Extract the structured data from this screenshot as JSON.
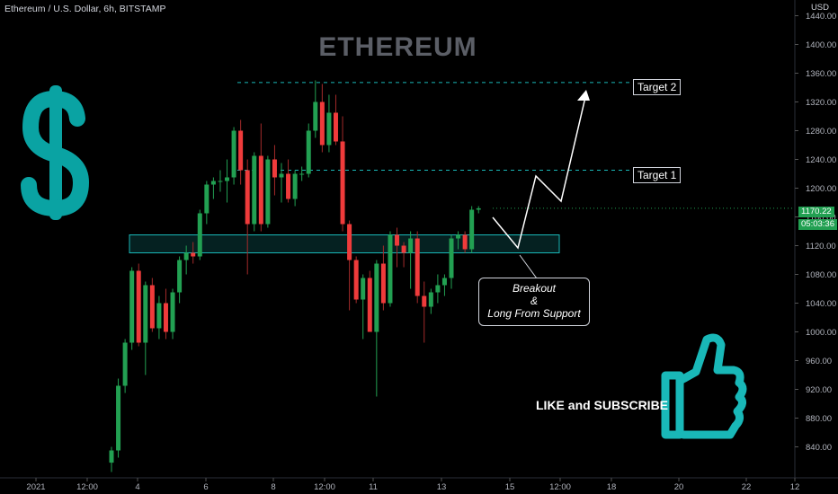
{
  "header": {
    "symbol_line": "Ethereum / U.S. Dollar, 6h, BITSTAMP",
    "currency": "USD",
    "watermark": "ETHEREUM"
  },
  "annotations": {
    "target1": "Target 1",
    "target2": "Target 2",
    "breakout_line1": "Breakout",
    "breakout_line2": "&",
    "breakout_line3": "Long From Support",
    "like": "LIKE and SUBSCRIBE"
  },
  "price_badge": {
    "price": "1170.22",
    "countdown": "05:03:36"
  },
  "icons": [
    "dollar-sign-icon",
    "thumbs-up-icon"
  ],
  "colors": {
    "up": "#26a69a",
    "up_candle": "#22a052",
    "down": "#ef3b3b",
    "accent": "#0aa3a3",
    "support_zone": "#19b8b8"
  },
  "chart_data": {
    "type": "candlestick",
    "title": "Ethereum / U.S. Dollar, 6h, BITSTAMP",
    "xlabel": "",
    "ylabel": "USD",
    "ylim": [
      800,
      1460
    ],
    "x_ticks": [
      "2021",
      "12:00",
      "4",
      "6",
      "8",
      "12:00",
      "11",
      "13",
      "15",
      "12:00",
      "18",
      "20",
      "22",
      "12"
    ],
    "y_ticks": [
      840,
      880,
      920,
      960,
      1000,
      1040,
      1080,
      1120,
      1160,
      1200,
      1240,
      1280,
      1320,
      1360,
      1400,
      1440
    ],
    "levels": {
      "target_1": 1225,
      "target_2": 1347,
      "support_zone": [
        1110,
        1135
      ]
    },
    "candles": [
      {
        "o": 818,
        "h": 840,
        "l": 805,
        "c": 835
      },
      {
        "o": 835,
        "h": 935,
        "l": 825,
        "c": 925
      },
      {
        "o": 925,
        "h": 990,
        "l": 915,
        "c": 985
      },
      {
        "o": 985,
        "h": 1090,
        "l": 975,
        "c": 1085
      },
      {
        "o": 1085,
        "h": 1095,
        "l": 980,
        "c": 985
      },
      {
        "o": 985,
        "h": 1070,
        "l": 940,
        "c": 1065
      },
      {
        "o": 1065,
        "h": 1075,
        "l": 1000,
        "c": 1005
      },
      {
        "o": 1005,
        "h": 1050,
        "l": 990,
        "c": 1040
      },
      {
        "o": 1040,
        "h": 1060,
        "l": 990,
        "c": 1000
      },
      {
        "o": 1000,
        "h": 1060,
        "l": 990,
        "c": 1055
      },
      {
        "o": 1055,
        "h": 1105,
        "l": 1040,
        "c": 1100
      },
      {
        "o": 1100,
        "h": 1120,
        "l": 1080,
        "c": 1110
      },
      {
        "o": 1110,
        "h": 1125,
        "l": 1095,
        "c": 1105
      },
      {
        "o": 1105,
        "h": 1170,
        "l": 1100,
        "c": 1165
      },
      {
        "o": 1165,
        "h": 1210,
        "l": 1150,
        "c": 1205
      },
      {
        "o": 1205,
        "h": 1215,
        "l": 1185,
        "c": 1210
      },
      {
        "o": 1210,
        "h": 1225,
        "l": 1195,
        "c": 1210
      },
      {
        "o": 1210,
        "h": 1240,
        "l": 1180,
        "c": 1215
      },
      {
        "o": 1215,
        "h": 1285,
        "l": 1205,
        "c": 1280
      },
      {
        "o": 1280,
        "h": 1295,
        "l": 1205,
        "c": 1225
      },
      {
        "o": 1225,
        "h": 1240,
        "l": 1080,
        "c": 1150
      },
      {
        "o": 1150,
        "h": 1250,
        "l": 1140,
        "c": 1245
      },
      {
        "o": 1245,
        "h": 1290,
        "l": 1140,
        "c": 1150
      },
      {
        "o": 1150,
        "h": 1245,
        "l": 1145,
        "c": 1240
      },
      {
        "o": 1240,
        "h": 1260,
        "l": 1190,
        "c": 1215
      },
      {
        "o": 1215,
        "h": 1235,
        "l": 1180,
        "c": 1220
      },
      {
        "o": 1220,
        "h": 1240,
        "l": 1180,
        "c": 1185
      },
      {
        "o": 1185,
        "h": 1225,
        "l": 1175,
        "c": 1220
      },
      {
        "o": 1220,
        "h": 1230,
        "l": 1210,
        "c": 1220
      },
      {
        "o": 1220,
        "h": 1290,
        "l": 1215,
        "c": 1280
      },
      {
        "o": 1280,
        "h": 1350,
        "l": 1270,
        "c": 1320
      },
      {
        "o": 1320,
        "h": 1345,
        "l": 1250,
        "c": 1260
      },
      {
        "o": 1260,
        "h": 1330,
        "l": 1250,
        "c": 1305
      },
      {
        "o": 1305,
        "h": 1330,
        "l": 1260,
        "c": 1265
      },
      {
        "o": 1265,
        "h": 1300,
        "l": 1140,
        "c": 1150
      },
      {
        "o": 1150,
        "h": 1155,
        "l": 1030,
        "c": 1100
      },
      {
        "o": 1100,
        "h": 1105,
        "l": 1040,
        "c": 1045
      },
      {
        "o": 1045,
        "h": 1080,
        "l": 990,
        "c": 1075
      },
      {
        "o": 1075,
        "h": 1085,
        "l": 1000,
        "c": 1000
      },
      {
        "o": 1000,
        "h": 1100,
        "l": 910,
        "c": 1095
      },
      {
        "o": 1095,
        "h": 1120,
        "l": 1030,
        "c": 1040
      },
      {
        "o": 1040,
        "h": 1140,
        "l": 1035,
        "c": 1135
      },
      {
        "o": 1135,
        "h": 1145,
        "l": 1090,
        "c": 1120
      },
      {
        "o": 1120,
        "h": 1125,
        "l": 1090,
        "c": 1110
      },
      {
        "o": 1110,
        "h": 1140,
        "l": 1060,
        "c": 1130
      },
      {
        "o": 1130,
        "h": 1140,
        "l": 1040,
        "c": 1050
      },
      {
        "o": 1050,
        "h": 1070,
        "l": 985,
        "c": 1035
      },
      {
        "o": 1035,
        "h": 1060,
        "l": 1025,
        "c": 1055
      },
      {
        "o": 1055,
        "h": 1080,
        "l": 1040,
        "c": 1065
      },
      {
        "o": 1065,
        "h": 1080,
        "l": 1050,
        "c": 1075
      },
      {
        "o": 1075,
        "h": 1135,
        "l": 1060,
        "c": 1130
      },
      {
        "o": 1130,
        "h": 1140,
        "l": 1115,
        "c": 1135
      },
      {
        "o": 1135,
        "h": 1140,
        "l": 1110,
        "c": 1115
      },
      {
        "o": 1115,
        "h": 1175,
        "l": 1110,
        "c": 1170
      },
      {
        "o": 1170,
        "h": 1175,
        "l": 1165,
        "c": 1172
      }
    ]
  }
}
